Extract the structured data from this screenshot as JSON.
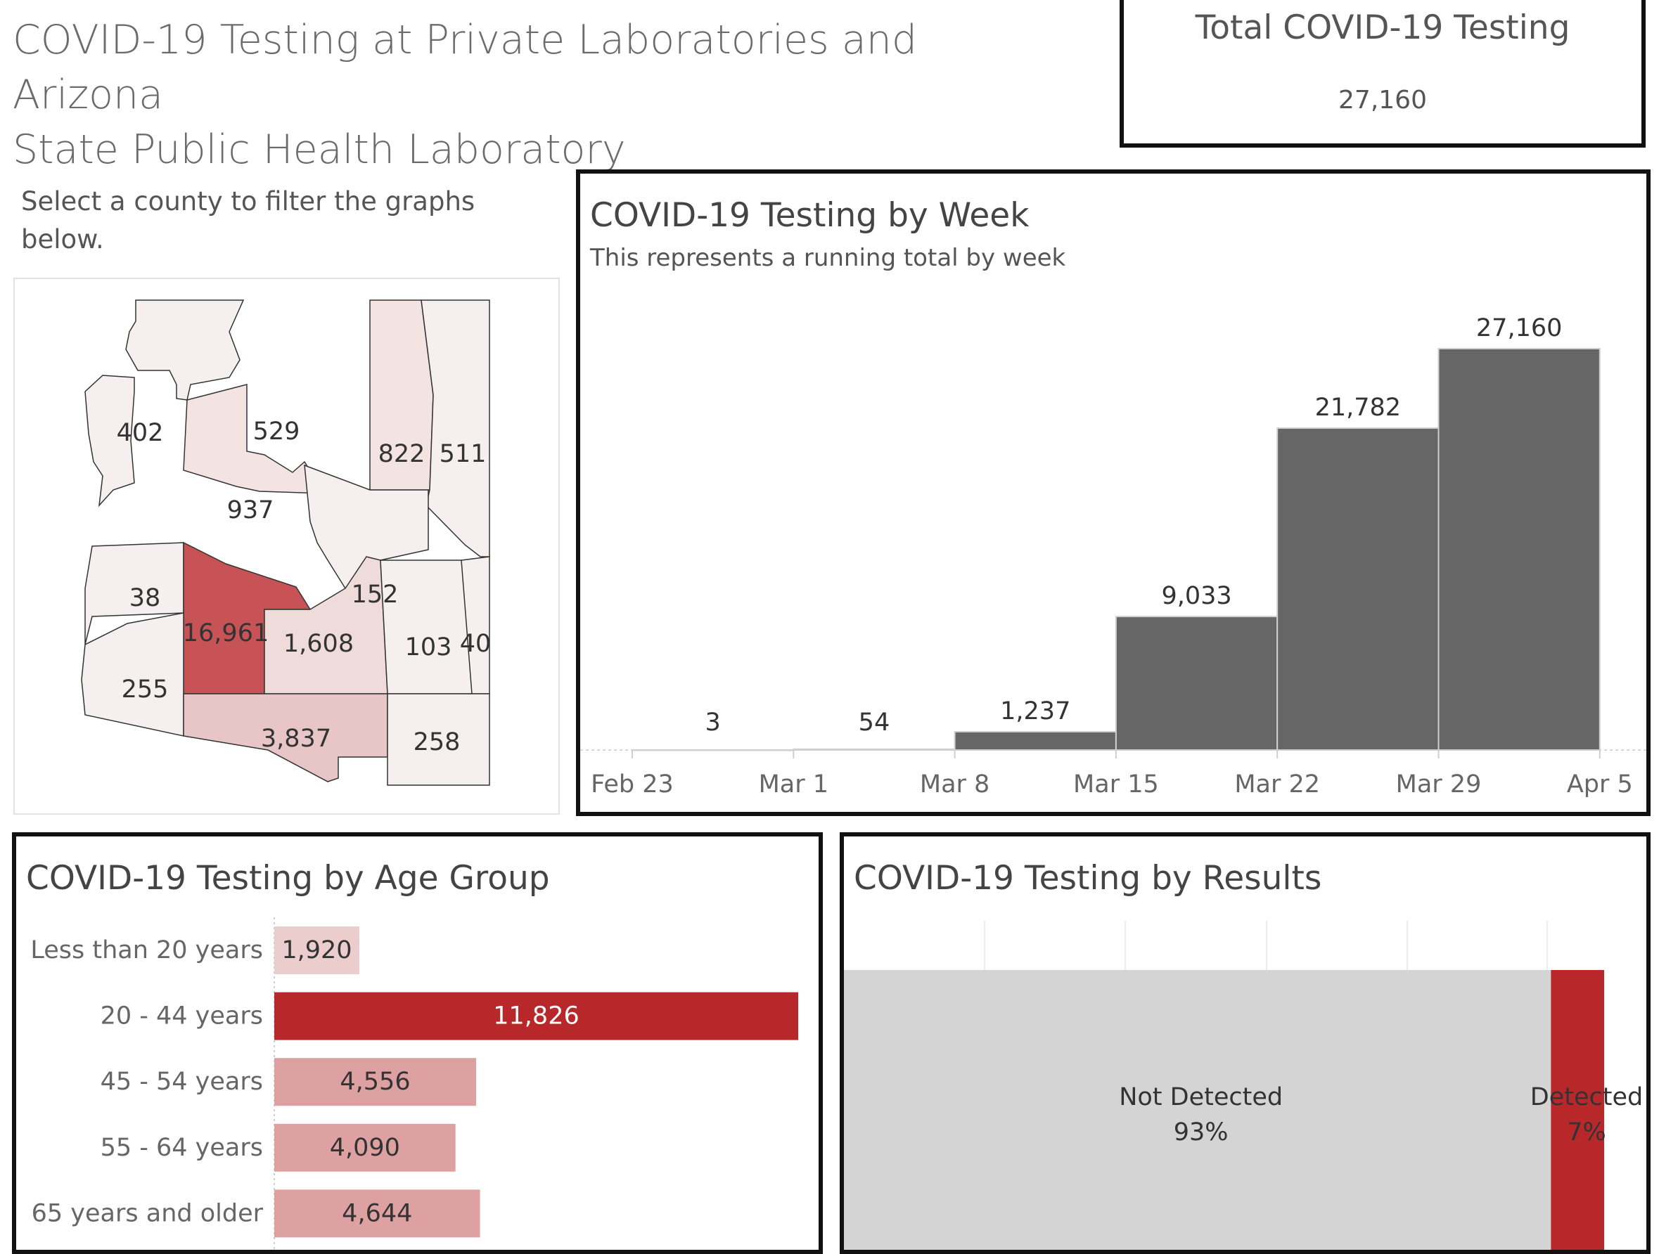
{
  "header": {
    "title_line1": "COVID-19 Testing at Private Laboratories and Arizona",
    "title_line2": "State Public Health Laboratory",
    "total_label": "Total COVID-19 Testing",
    "total_value": "27,160"
  },
  "map": {
    "instruction_line1": "Select a county to filter the graphs",
    "instruction_line2": "below.",
    "counties": [
      {
        "label": "402",
        "value": 402
      },
      {
        "label": "529",
        "value": 529
      },
      {
        "label": "822",
        "value": 822
      },
      {
        "label": "511",
        "value": 511
      },
      {
        "label": "937",
        "value": 937
      },
      {
        "label": "38",
        "value": 38
      },
      {
        "label": "16,961",
        "value": 16961
      },
      {
        "label": "152",
        "value": 152
      },
      {
        "label": "1,608",
        "value": 1608
      },
      {
        "label": "255",
        "value": 255
      },
      {
        "label": "103",
        "value": 103
      },
      {
        "label": "40",
        "value": 40
      },
      {
        "label": "3,837",
        "value": 3837
      },
      {
        "label": "258",
        "value": 258
      }
    ]
  },
  "chart_data": [
    {
      "type": "bar",
      "title": "COVID-19 Testing by Week",
      "subtitle": "This represents a running total by week",
      "x_ticks": [
        "Feb 23",
        "Mar 1",
        "Mar 8",
        "Mar 15",
        "Mar 22",
        "Mar 29",
        "Apr 5"
      ],
      "categories": [
        "Feb 23",
        "Mar 1",
        "Mar 8",
        "Mar 15",
        "Mar 22",
        "Mar 29"
      ],
      "values": [
        3,
        54,
        1237,
        9033,
        21782,
        27160
      ],
      "data_labels": [
        "3",
        "54",
        "1,237",
        "9,033",
        "21,782",
        "27,160"
      ],
      "ylim": [
        0,
        27160
      ],
      "color": "#666666"
    },
    {
      "type": "bar",
      "orientation": "horizontal",
      "title": "COVID-19 Testing by Age Group",
      "categories": [
        "Less than 20 years",
        "20 - 44 years",
        "45 - 54 years",
        "55 - 64 years",
        "65 years and older"
      ],
      "values": [
        1920,
        11826,
        4556,
        4090,
        4644
      ],
      "data_labels": [
        "1,920",
        "11,826",
        "4,556",
        "4,090",
        "4,644"
      ],
      "colors": [
        "#eccdcd",
        "#b8282a",
        "#dea1a2",
        "#dea1a2",
        "#dea1a2"
      ]
    },
    {
      "type": "bar",
      "stacked": true,
      "orientation": "horizontal",
      "title": "COVID-19 Testing by Results",
      "segments": [
        {
          "name": "Not Detected",
          "percent_label": "93%",
          "value": 93,
          "color": "#d4d4d4"
        },
        {
          "name": "Detected",
          "percent_label": "7%",
          "value": 7,
          "color": "#b8282a"
        }
      ]
    }
  ]
}
